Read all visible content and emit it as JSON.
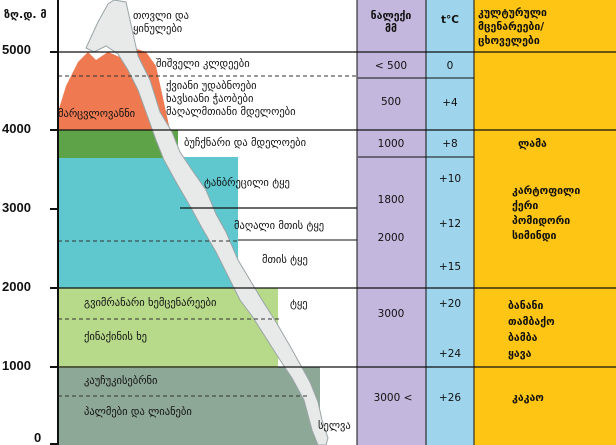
{
  "axis": {
    "unit": "ზღ.დ. მ",
    "ticks": [
      "5000",
      "4000",
      "3000",
      "2000",
      "1000",
      "0"
    ]
  },
  "zones": {
    "snow": "თოვლი და\nყინულები",
    "cliffs": "შიშველი კლდეები",
    "alpine": "ქვიანი უდაბნოები\nხავსიანი ჭაობები\nმაღალმთიანი მდელოები",
    "glaciers_side": "მარცვლოვანნი",
    "meadow": "ბუჩქნარი და მდელოები",
    "cold_forest": "ტანბრეცილი ტყე",
    "high_forest": "მაღალი მთის ტყე",
    "mountain_forest": "მთის ტყე",
    "evergreen": "გვიმრანარი ხემცენარეები",
    "evergreen_forest": "ტყე",
    "cinchona": "ქინაქინის ხე",
    "rubber": "კაუჩუკისებრნი",
    "palms": "პალმები და ლიანები",
    "selva": "სელვა"
  },
  "columns": {
    "precip_header": "ნალექი\nმმ",
    "temp_header": "t°C",
    "crops_header": "კულტურული\nმცენარეები/\nცხოველები"
  },
  "precip": [
    "< 500",
    "500",
    "1000",
    "1800",
    "2000",
    "3000",
    "3000 <"
  ],
  "temp": [
    "0",
    "+4",
    "+8",
    "+10",
    "+12",
    "+15",
    "+20",
    "+24",
    "+26"
  ],
  "crops": [
    "ლამა",
    "კარტოფილი\nქერი\nპომიდორი\nსიმინდი",
    "ბანანი\nთამბაქო\nბამბა\nყავა",
    "კაკაო"
  ],
  "colors": {
    "snow": "#ffffff",
    "alpine": "#ef7a52",
    "meadow": "#5fa348",
    "cold_forest": "#5fc8cf",
    "warm_forest": "#b7d98a",
    "tropical": "#8ea898",
    "precip_col": "#c4b7dd",
    "temp_col": "#9ed4ec",
    "crops_col": "#ffc514"
  }
}
